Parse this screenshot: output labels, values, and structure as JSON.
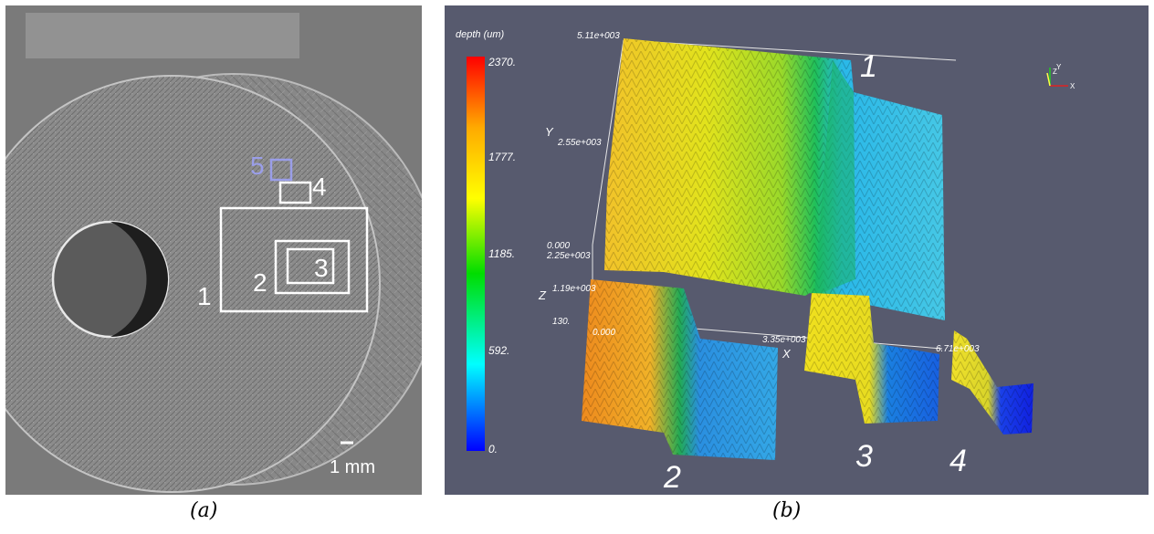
{
  "figure": {
    "captions": {
      "a": "(a)",
      "b": "(b)"
    }
  },
  "panel_a": {
    "region_labels": [
      "1",
      "2",
      "3",
      "4",
      "5"
    ],
    "scale_bar_label": "1 mm",
    "colors": {
      "region_box": "#ffffff",
      "region_5_box": "#9a9ee8"
    }
  },
  "panel_b": {
    "colorbar": {
      "title": "depth (um)",
      "ticks": [
        "2370.",
        "1777.",
        "1185.",
        "592.",
        "0."
      ],
      "range": [
        0,
        2370
      ],
      "stops": [
        "#ff0000",
        "#ffaa00",
        "#ffff00",
        "#00dd00",
        "#00ffff",
        "#0000ff"
      ]
    },
    "axes": {
      "y_label": "Y",
      "z_label": "Z",
      "x_label": "X",
      "y_ticks": [
        "5.11e+003",
        "2.55e+003",
        "0.000"
      ],
      "z_ticks": [
        "2.25e+003",
        "1.19e+003",
        "130."
      ],
      "x_ticks": [
        "0.000",
        "3.35e+003",
        "6.71e+003"
      ]
    },
    "surface_labels": [
      "1",
      "2",
      "3",
      "4"
    ],
    "orientation_widget": {
      "z": "Z",
      "y": "Y",
      "x": "X"
    },
    "background_color": "#575a6e"
  }
}
